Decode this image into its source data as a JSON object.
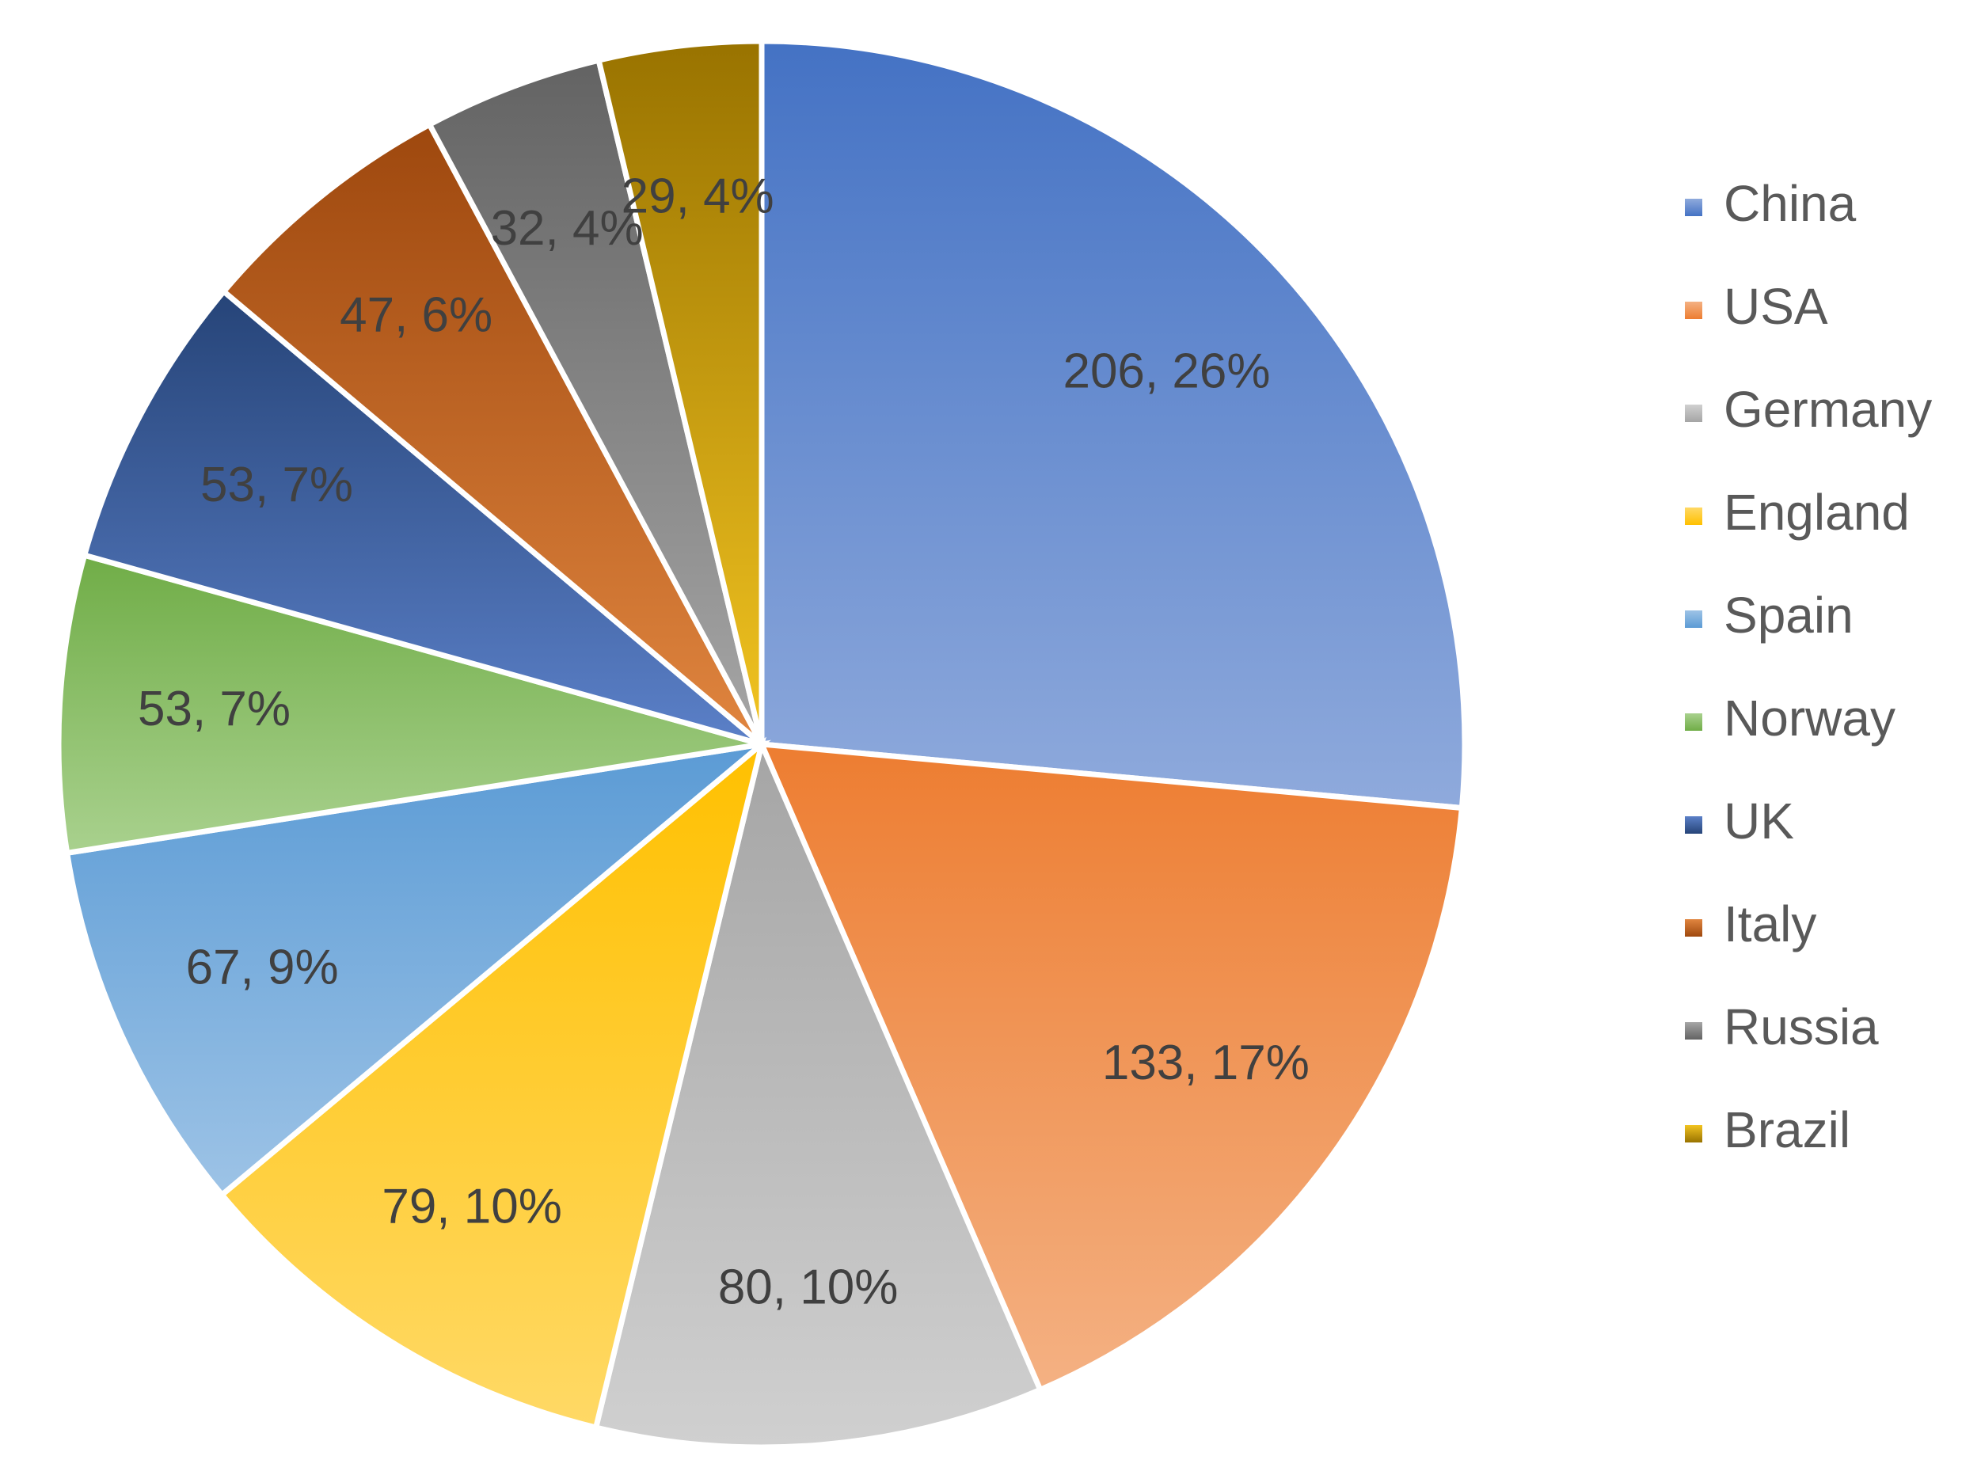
{
  "chart_data": {
    "type": "pie",
    "title": "",
    "legend_position": "right",
    "label_format": "value, percent",
    "slices": [
      {
        "name": "China",
        "value": 206,
        "percent": "26%",
        "label": "206, 26%",
        "color": "#4472C4",
        "color_light": "#8FAADC"
      },
      {
        "name": "USA",
        "value": 133,
        "percent": "17%",
        "label": "133, 17%",
        "color": "#ED7D31",
        "color_light": "#F4B183"
      },
      {
        "name": "Germany",
        "value": 80,
        "percent": "10%",
        "label": "80, 10%",
        "color": "#A5A5A5",
        "color_light": "#D0D0D0"
      },
      {
        "name": "England",
        "value": 79,
        "percent": "10%",
        "label": "79, 10%",
        "color": "#FFC000",
        "color_light": "#FFD966"
      },
      {
        "name": "Spain",
        "value": 67,
        "percent": "9%",
        "label": "67, 9%",
        "color": "#5B9BD5",
        "color_light": "#9DC3E6"
      },
      {
        "name": "Norway",
        "value": 53,
        "percent": "7%",
        "label": "53, 7%",
        "color": "#70AD47",
        "color_light": "#A9D18E"
      },
      {
        "name": "UK",
        "value": 53,
        "percent": "7%",
        "label": "53, 7%",
        "color": "#264478",
        "color_light": "#5B80C8"
      },
      {
        "name": "Italy",
        "value": 47,
        "percent": "6%",
        "label": "47, 6%",
        "color": "#9E480E",
        "color_light": "#E0853F"
      },
      {
        "name": "Russia",
        "value": 32,
        "percent": "4%",
        "label": "32, 4%",
        "color": "#636363",
        "color_light": "#A6A6A6"
      },
      {
        "name": "Brazil",
        "value": 29,
        "percent": "4%",
        "label": "29, 4%",
        "color": "#997300",
        "color_light": "#F2C421"
      }
    ]
  }
}
